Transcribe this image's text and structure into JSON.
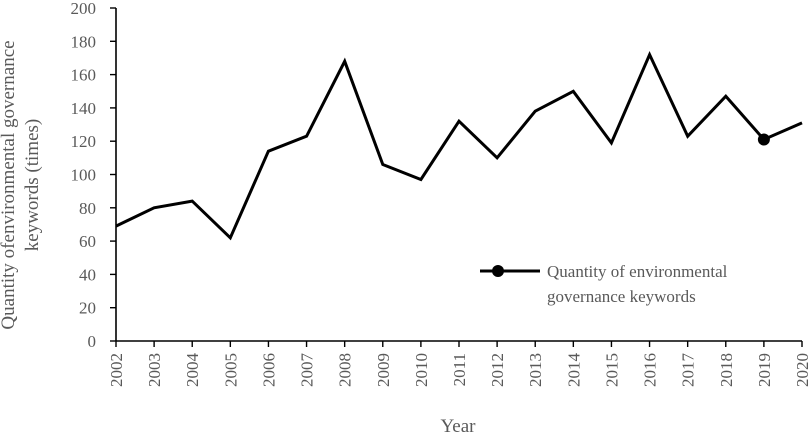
{
  "chart_data": {
    "type": "line",
    "x": [
      "2002",
      "2003",
      "2004",
      "2005",
      "2006",
      "2007",
      "2008",
      "2009",
      "2010",
      "2011",
      "2012",
      "2013",
      "2014",
      "2015",
      "2016",
      "2017",
      "2018",
      "2019",
      "2020"
    ],
    "series": [
      {
        "name": "Quantity of environmental governance keywords",
        "values": [
          69,
          80,
          84,
          62,
          114,
          123,
          168,
          106,
          97,
          132,
          110,
          138,
          150,
          119,
          172,
          123,
          147,
          121,
          131
        ],
        "marker_at": "2019"
      }
    ],
    "xlabel": "Year",
    "ylabel_lines": [
      "Quantity ofenvironmental governance",
      "keywords (times)"
    ],
    "ylim": [
      0,
      200
    ],
    "yticks": [
      0,
      20,
      40,
      60,
      80,
      100,
      120,
      140,
      160,
      180,
      200
    ],
    "grid": false,
    "legend": {
      "placement": "right",
      "lines": [
        "Quantity of environmental",
        "governance keywords"
      ]
    },
    "colors": {
      "line": "#000000",
      "axis": "#000000",
      "text": "#595959"
    }
  }
}
